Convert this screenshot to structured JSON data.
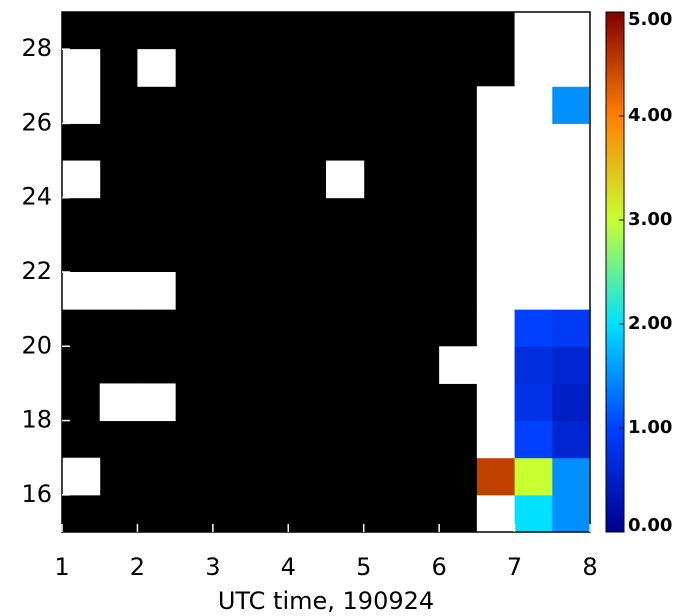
{
  "chart_data": {
    "type": "heatmap",
    "x_label": "UTC time, 190924",
    "xlim": [
      1,
      8
    ],
    "xticks": [
      1,
      2,
      3,
      4,
      5,
      6,
      7,
      8
    ],
    "ylim": [
      15,
      29
    ],
    "yticks": [
      16,
      18,
      20,
      22,
      24,
      26,
      28
    ],
    "zlim": [
      0,
      5
    ],
    "zticks": [
      {
        "value": 0,
        "label": "0.00"
      },
      {
        "value": 1,
        "label": "1.00"
      },
      {
        "value": 2,
        "label": "2.00"
      },
      {
        "value": 3,
        "label": "3.00"
      },
      {
        "value": 4,
        "label": "4.00"
      },
      {
        "value": 5,
        "label": "5.00"
      }
    ],
    "colormap": [
      "#00008f",
      "#0040ff",
      "#00e0ff",
      "#c8ff30",
      "#ff8000",
      "#800000"
    ],
    "background_color": "#000000",
    "over_color": "#ffffff",
    "z": [
      [
        null,
        null,
        null,
        null,
        null,
        null,
        null,
        null,
        null,
        null,
        null,
        6,
        2.0,
        1.5
      ],
      [
        6,
        null,
        null,
        null,
        null,
        null,
        null,
        null,
        null,
        null,
        null,
        4.5,
        3.0,
        1.5
      ],
      [
        null,
        null,
        null,
        null,
        null,
        null,
        null,
        null,
        null,
        null,
        null,
        6,
        1.0,
        0.6
      ],
      [
        null,
        6,
        6,
        null,
        null,
        null,
        null,
        null,
        null,
        null,
        null,
        6,
        0.8,
        0.5
      ],
      [
        null,
        null,
        null,
        null,
        null,
        null,
        null,
        null,
        null,
        null,
        6,
        6,
        0.7,
        0.6
      ],
      [
        null,
        null,
        null,
        null,
        null,
        null,
        null,
        null,
        null,
        null,
        null,
        6,
        1.0,
        0.9
      ],
      [
        6,
        6,
        6,
        null,
        null,
        null,
        null,
        null,
        null,
        null,
        null,
        6,
        6,
        6
      ],
      [
        null,
        null,
        null,
        null,
        null,
        null,
        null,
        null,
        null,
        null,
        null,
        6,
        6,
        6
      ],
      [
        null,
        null,
        null,
        null,
        null,
        null,
        null,
        null,
        null,
        null,
        null,
        6,
        6,
        6
      ],
      [
        6,
        null,
        null,
        null,
        null,
        null,
        null,
        6,
        null,
        null,
        null,
        6,
        6,
        6
      ],
      [
        null,
        null,
        null,
        null,
        null,
        null,
        null,
        null,
        null,
        null,
        null,
        6,
        6,
        6
      ],
      [
        6,
        null,
        null,
        null,
        null,
        null,
        null,
        null,
        null,
        null,
        null,
        6,
        6,
        1.5
      ],
      [
        6,
        null,
        6,
        null,
        null,
        null,
        null,
        null,
        null,
        null,
        null,
        null,
        6,
        6
      ],
      [
        null,
        null,
        null,
        null,
        null,
        null,
        null,
        null,
        null,
        null,
        null,
        null,
        6,
        6
      ]
    ]
  }
}
